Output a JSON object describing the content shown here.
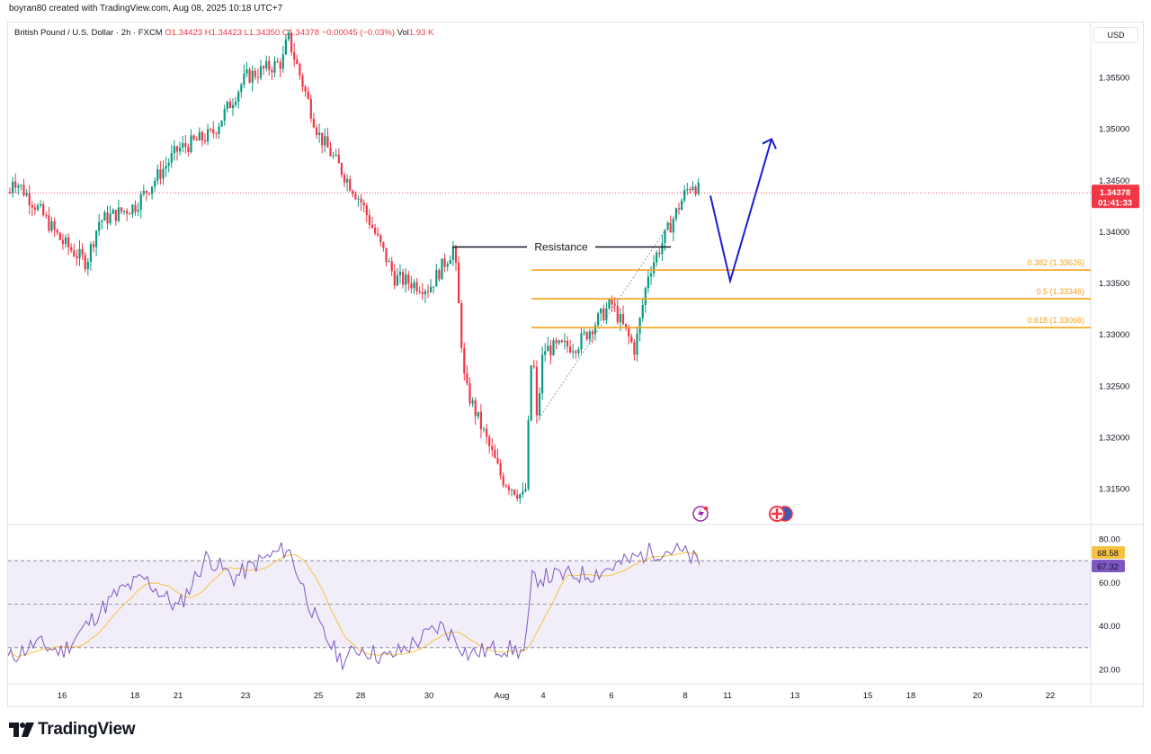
{
  "header": {
    "created_by": "boyran80 created with TradingView.com, Aug 08, 2025 10:18 UTC+7"
  },
  "legend": {
    "symbol": "British Pound / U.S. Dollar · 2h · FXCM",
    "open": "O1.34423",
    "high": "H1.34423",
    "low": "L1.34350",
    "close": "C1.34378",
    "change": "−0.00045 (−0.03%)",
    "volume_label": "Vol",
    "volume": "1.93 K"
  },
  "currency": "USD",
  "price_axis": [
    "1.35500",
    "1.35000",
    "1.34500",
    "1.34000",
    "1.33500",
    "1.33000",
    "1.32500",
    "1.32000",
    "1.31500"
  ],
  "last_price": {
    "value": "1.34378",
    "countdown": "01:41:33",
    "color": "#f23645"
  },
  "time_axis": [
    "16",
    "18",
    "21",
    "23",
    "25",
    "28",
    "30",
    "Aug",
    "4",
    "6",
    "8",
    "11",
    "13",
    "15",
    "18",
    "20",
    "22"
  ],
  "rsi_axis": [
    "80.00",
    "60.00",
    "40.00",
    "20.00"
  ],
  "rsi_values": {
    "rsi": "68.58",
    "rsi_ma": "67.32"
  },
  "annotations": {
    "resistance": "Resistance",
    "fib_382": "0.382 (1.33626)",
    "fib_500": "0.5 (1.33346)",
    "fib_618": "0.618 (1.33066)"
  },
  "colors": {
    "up": "#089981",
    "down": "#f23645",
    "fib": "#f7a21b",
    "projection": "#1c1cd6",
    "rsi": "#7e57c2",
    "rsi_ma": "#f5c242"
  },
  "brand": "TradingView",
  "chart_data": {
    "type": "candlestick",
    "symbol": "GBPUSD",
    "timeframe": "2h",
    "ylim": [
      1.3125,
      1.3605
    ],
    "close_path": [
      {
        "date": "Jul 14",
        "close": 1.3455
      },
      {
        "date": "Jul 15",
        "close": 1.3425
      },
      {
        "date": "Jul 16",
        "close": 1.339
      },
      {
        "date": "Jul 17",
        "close": 1.341
      },
      {
        "date": "Jul 18",
        "close": 1.3425
      },
      {
        "date": "Jul 21",
        "close": 1.348
      },
      {
        "date": "Jul 22",
        "close": 1.3495
      },
      {
        "date": "Jul 23",
        "close": 1.355
      },
      {
        "date": "Jul 24",
        "close": 1.3565
      },
      {
        "date": "Jul 25",
        "close": 1.3495
      },
      {
        "date": "Jul 28",
        "close": 1.343
      },
      {
        "date": "Jul 29",
        "close": 1.3355
      },
      {
        "date": "Jul 30",
        "close": 1.3345
      },
      {
        "date": "Jul 31",
        "close": 1.325
      },
      {
        "date": "Aug 01",
        "close": 1.316
      },
      {
        "date": "Aug 04",
        "close": 1.3285
      },
      {
        "date": "Aug 05",
        "close": 1.329
      },
      {
        "date": "Aug 06",
        "close": 1.333
      },
      {
        "date": "Aug 07",
        "close": 1.336
      },
      {
        "date": "Aug 08",
        "close": 1.34378
      }
    ],
    "fibonacci": [
      {
        "level": 0.382,
        "price": 1.33626
      },
      {
        "level": 0.5,
        "price": 1.33346
      },
      {
        "level": 0.618,
        "price": 1.33066
      }
    ],
    "resistance": 1.3385,
    "projection": [
      {
        "date": "Aug 08",
        "price": 1.3435
      },
      {
        "date": "Aug 11",
        "price": 1.3352
      },
      {
        "date": "Aug 12",
        "price": 1.349
      }
    ],
    "rsi": {
      "last": 68.58,
      "ma_last": 67.32,
      "bands": [
        30,
        50,
        70
      ],
      "ylim": [
        15,
        85
      ]
    }
  }
}
